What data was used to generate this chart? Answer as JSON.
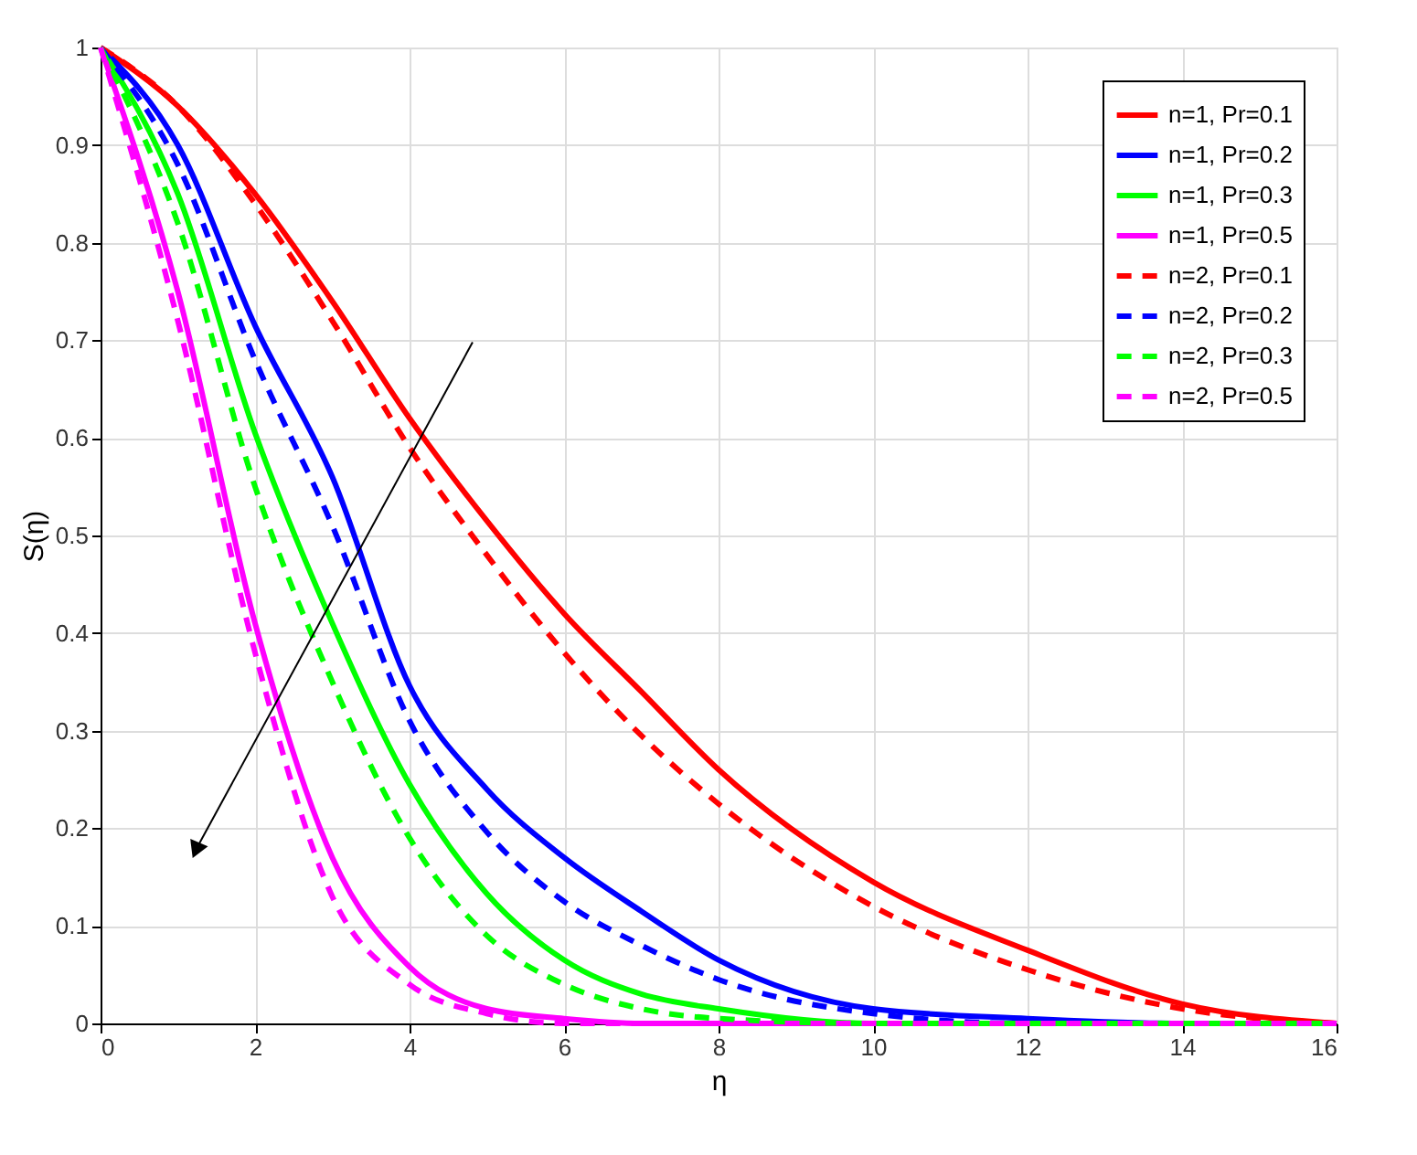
{
  "chart_data": {
    "type": "line",
    "xlabel": "η",
    "ylabel": "S(η)",
    "x": [
      0,
      1,
      2,
      3,
      4,
      5,
      6,
      7,
      8,
      10,
      12,
      14,
      16
    ],
    "series": [
      {
        "name": "n=1, Pr=0.1",
        "color": "#ff0000",
        "line_style": "solid",
        "values": [
          1,
          0.94,
          0.85,
          0.74,
          0.62,
          0.515,
          0.42,
          0.34,
          0.26,
          0.145,
          0.075,
          0.02,
          0
        ]
      },
      {
        "name": "n=1, Pr=0.2",
        "color": "#0000ff",
        "line_style": "solid",
        "values": [
          1,
          0.9,
          0.715,
          0.56,
          0.346,
          0.24,
          0.17,
          0.115,
          0.065,
          0.015,
          0.005,
          0,
          0
        ]
      },
      {
        "name": "n=1, Pr=0.3",
        "color": "#00ff00",
        "line_style": "solid",
        "values": [
          1,
          0.85,
          0.605,
          0.41,
          0.245,
          0.133,
          0.065,
          0.03,
          0.015,
          0,
          0,
          0,
          0
        ]
      },
      {
        "name": "n=1, Pr=0.5",
        "color": "#ff00ff",
        "line_style": "solid",
        "values": [
          1,
          0.75,
          0.41,
          0.17,
          0.058,
          0.015,
          0.005,
          0,
          0,
          0,
          0,
          0,
          0
        ]
      },
      {
        "name": "n=2, Pr=0.1",
        "color": "#ff0000",
        "line_style": "dashed",
        "values": [
          1,
          0.94,
          0.84,
          0.72,
          0.59,
          0.48,
          0.38,
          0.295,
          0.225,
          0.12,
          0.055,
          0.015,
          0
        ]
      },
      {
        "name": "n=2, Pr=0.2",
        "color": "#0000ff",
        "line_style": "dashed",
        "values": [
          1,
          0.88,
          0.68,
          0.51,
          0.31,
          0.196,
          0.125,
          0.08,
          0.045,
          0.01,
          0,
          0,
          0
        ]
      },
      {
        "name": "n=2, Pr=0.3",
        "color": "#00ff00",
        "line_style": "dashed",
        "values": [
          1,
          0.82,
          0.55,
          0.35,
          0.19,
          0.09,
          0.04,
          0.015,
          0.005,
          0,
          0,
          0,
          0
        ]
      },
      {
        "name": "n=2, Pr=0.5",
        "color": "#ff00ff",
        "line_style": "dashed",
        "values": [
          1,
          0.72,
          0.38,
          0.13,
          0.04,
          0.01,
          0,
          0,
          0,
          0,
          0,
          0,
          0
        ]
      }
    ],
    "xlim": [
      0,
      16
    ],
    "xticks": [
      0,
      2,
      4,
      6,
      8,
      10,
      12,
      14,
      16
    ],
    "ylim": [
      0,
      1
    ],
    "yticks": [
      0,
      0.1,
      0.2,
      0.3,
      0.4,
      0.5,
      0.6,
      0.7,
      0.8,
      0.9,
      1
    ],
    "grid": true,
    "legend": "top right",
    "marker": "none"
  }
}
